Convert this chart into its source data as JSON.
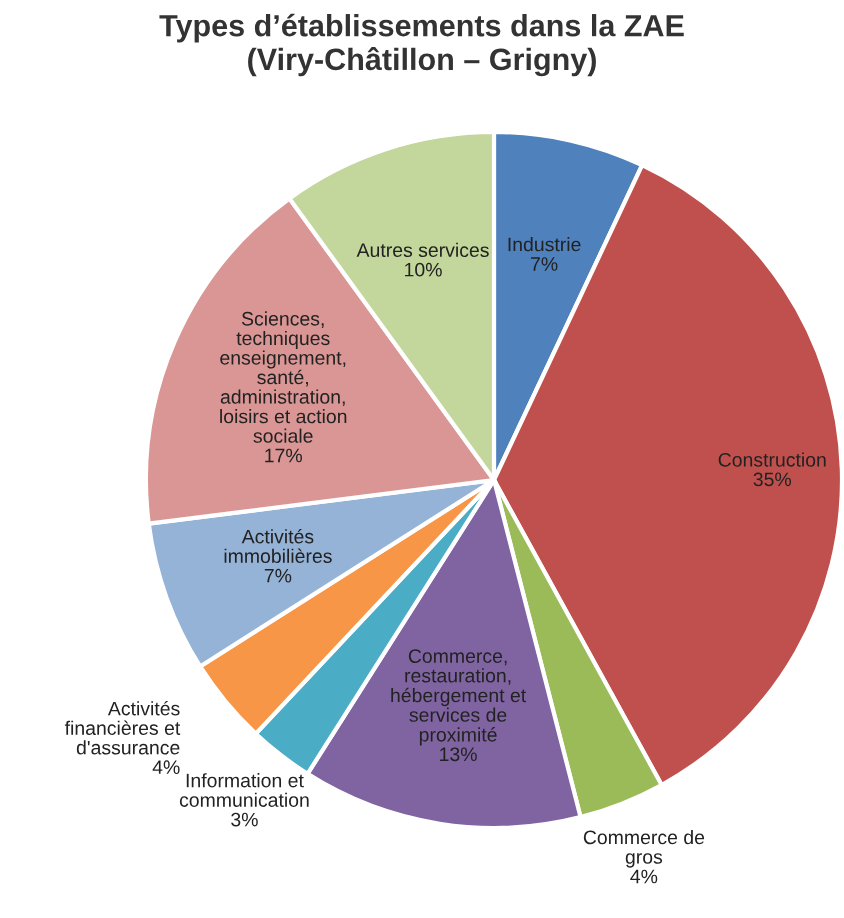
{
  "chart_data": {
    "type": "pie",
    "title": "Types d’établissements dans la ZAE\n(Viry-Châtillon – Grigny)",
    "categories": [
      "Industrie",
      "Construction",
      "Commerce de\ngros",
      "Commerce,\nrestauration,\nhébergement et\nservices de\nproximité",
      "Information et\ncommunication",
      "Activités\nfinancières et\nd'assurance",
      "Activités\nimmobilières",
      "Sciences,\ntechniques\nenseignement,\nsanté,\nadministration,\nloisirs et action\nsociale",
      "Autres services"
    ],
    "values": [
      7,
      35,
      4,
      13,
      3,
      4,
      7,
      17,
      10
    ],
    "colors": [
      "#4f81bd",
      "#c0504d",
      "#9bbb59",
      "#8064a2",
      "#4bacc6",
      "#f79646",
      "#95b3d7",
      "#d99694",
      "#c3d69b"
    ],
    "value_labels": [
      "7%",
      "35%",
      "4%",
      "13%",
      "3%",
      "4%",
      "7%",
      "17%",
      "10%"
    ]
  }
}
